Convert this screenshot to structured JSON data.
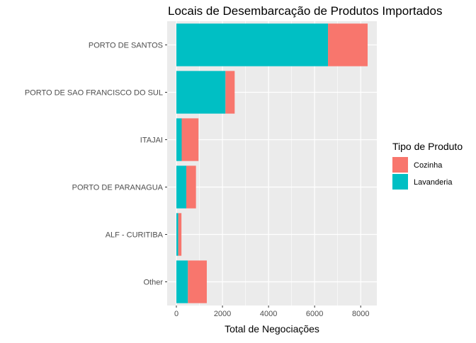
{
  "chart_data": {
    "type": "bar",
    "orientation": "horizontal",
    "stacked": true,
    "title": "Locais de Desembarcação de Produtos Importados",
    "xlabel": "Total de Negociações",
    "ylabel": "",
    "xlim": [
      -400,
      8700
    ],
    "xticks": [
      0,
      2000,
      4000,
      6000,
      8000
    ],
    "categories": [
      "PORTO DE SANTOS",
      "PORTO DE SAO FRANCISCO DO SUL",
      "ITAJAI",
      "PORTO DE PARANAGUA",
      "ALF - CURITIBA",
      "Other"
    ],
    "series": [
      {
        "name": "Lavanderia",
        "color": "#00BFC4",
        "values": [
          6580,
          2130,
          230,
          430,
          80,
          500
        ]
      },
      {
        "name": "Cozinha",
        "color": "#F8766D",
        "values": [
          1720,
          400,
          730,
          420,
          140,
          820
        ]
      }
    ],
    "legend": {
      "title": "Tipo de Produto",
      "position": "right",
      "entries": [
        {
          "label": "Cozinha",
          "color": "#F8766D"
        },
        {
          "label": "Lavanderia",
          "color": "#00BFC4"
        }
      ]
    },
    "grid": true,
    "panel_background": "#EBEBEB",
    "grid_color": "#FFFFFF"
  }
}
